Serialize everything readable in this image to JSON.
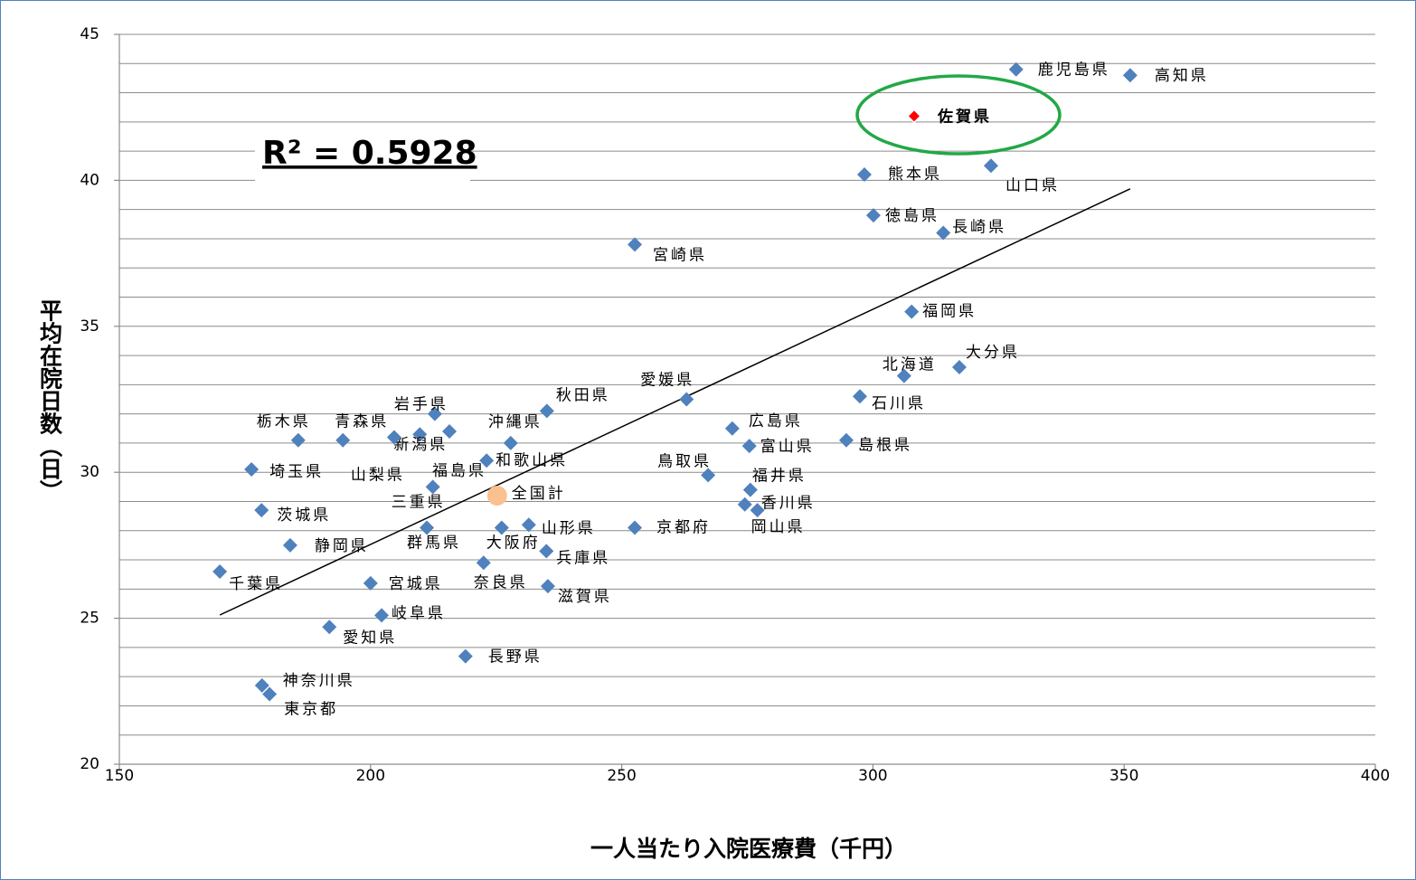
{
  "chart_data": {
    "type": "scatter",
    "xlabel": "一人当たり入院医療費（千円）",
    "ylabel": "平均在院日数（日）",
    "annotation": "R² = 0.5928",
    "xlim": [
      150,
      400
    ],
    "xticks": [
      150,
      200,
      250,
      300,
      350,
      400
    ],
    "ylim": [
      20,
      45
    ],
    "yticks": [
      20,
      25,
      30,
      35,
      40,
      45
    ],
    "yminorticks": [
      21,
      22,
      23,
      24,
      26,
      27,
      28,
      29,
      31,
      32,
      33,
      34,
      36,
      37,
      38,
      39,
      41,
      42,
      43,
      44
    ],
    "grid": true,
    "trendline": true,
    "labels": [
      "北海道",
      "青森県",
      "岩手県",
      "宮城県",
      "秋田県",
      "山形県",
      "福島県",
      "茨城県",
      "栃木県",
      "群馬県",
      "埼玉県",
      "千葉県",
      "東京都",
      "神奈川県",
      "新潟県",
      "富山県",
      "石川県",
      "福井県",
      "山梨県",
      "長野県",
      "岐阜県",
      "静岡県",
      "愛知県",
      "三重県",
      "滋賀県",
      "京都府",
      "大阪府",
      "兵庫県",
      "奈良県",
      "和歌山県",
      "鳥取県",
      "島根県",
      "岡山県",
      "広島県",
      "山口県",
      "徳島県",
      "香川県",
      "愛媛県",
      "高知県",
      "福岡県",
      "佐賀県",
      "長崎県",
      "熊本県",
      "大分県",
      "宮崎県",
      "鹿児島県",
      "沖縄県"
    ],
    "x": [
      306.2,
      194.5,
      212.8,
      200.0,
      235.1,
      231.5,
      215.7,
      178.3,
      185.6,
      211.2,
      176.3,
      170.0,
      179.9,
      178.4,
      209.8,
      275.4,
      297.4,
      275.6,
      204.7,
      218.9,
      202.2,
      184.0,
      191.8,
      212.4,
      235.3,
      252.6,
      226.1,
      235.0,
      222.5,
      223.1,
      267.2,
      294.7,
      277.0,
      272.0,
      323.5,
      300.1,
      274.5,
      262.9,
      351.2,
      307.7,
      308.2,
      314.0,
      298.3,
      317.2,
      252.6,
      328.5,
      227.9
    ],
    "y": [
      33.3,
      31.1,
      32.0,
      26.2,
      32.1,
      28.2,
      31.4,
      28.7,
      31.1,
      28.1,
      30.1,
      26.6,
      22.4,
      22.7,
      31.3,
      30.9,
      32.6,
      29.4,
      31.2,
      23.7,
      25.1,
      27.5,
      24.7,
      29.5,
      26.1,
      28.1,
      28.1,
      27.3,
      26.9,
      30.4,
      29.9,
      31.1,
      28.7,
      31.5,
      40.5,
      38.8,
      28.9,
      32.5,
      43.6,
      35.5,
      42.2,
      38.2,
      40.2,
      33.6,
      37.8,
      43.8,
      31.0
    ],
    "colors": [
      "#4f81bd",
      "#4f81bd",
      "#4f81bd",
      "#4f81bd",
      "#4f81bd",
      "#4f81bd",
      "#4f81bd",
      "#4f81bd",
      "#4f81bd",
      "#4f81bd",
      "#4f81bd",
      "#4f81bd",
      "#4f81bd",
      "#4f81bd",
      "#4f81bd",
      "#4f81bd",
      "#4f81bd",
      "#4f81bd",
      "#4f81bd",
      "#4f81bd",
      "#4f81bd",
      "#4f81bd",
      "#4f81bd",
      "#4f81bd",
      "#4f81bd",
      "#4f81bd",
      "#4f81bd",
      "#4f81bd",
      "#4f81bd",
      "#4f81bd",
      "#4f81bd",
      "#4f81bd",
      "#4f81bd",
      "#4f81bd",
      "#4f81bd",
      "#4f81bd",
      "#4f81bd",
      "#4f81bd",
      "#4f81bd",
      "#4f81bd",
      "#ff0000",
      "#4f81bd",
      "#4f81bd",
      "#4f81bd",
      "#4f81bd",
      "#4f81bd",
      "#4f81bd"
    ],
    "national": {
      "label": "全国計",
      "x": 225.2,
      "y": 29.2,
      "color": "#fac090"
    }
  }
}
